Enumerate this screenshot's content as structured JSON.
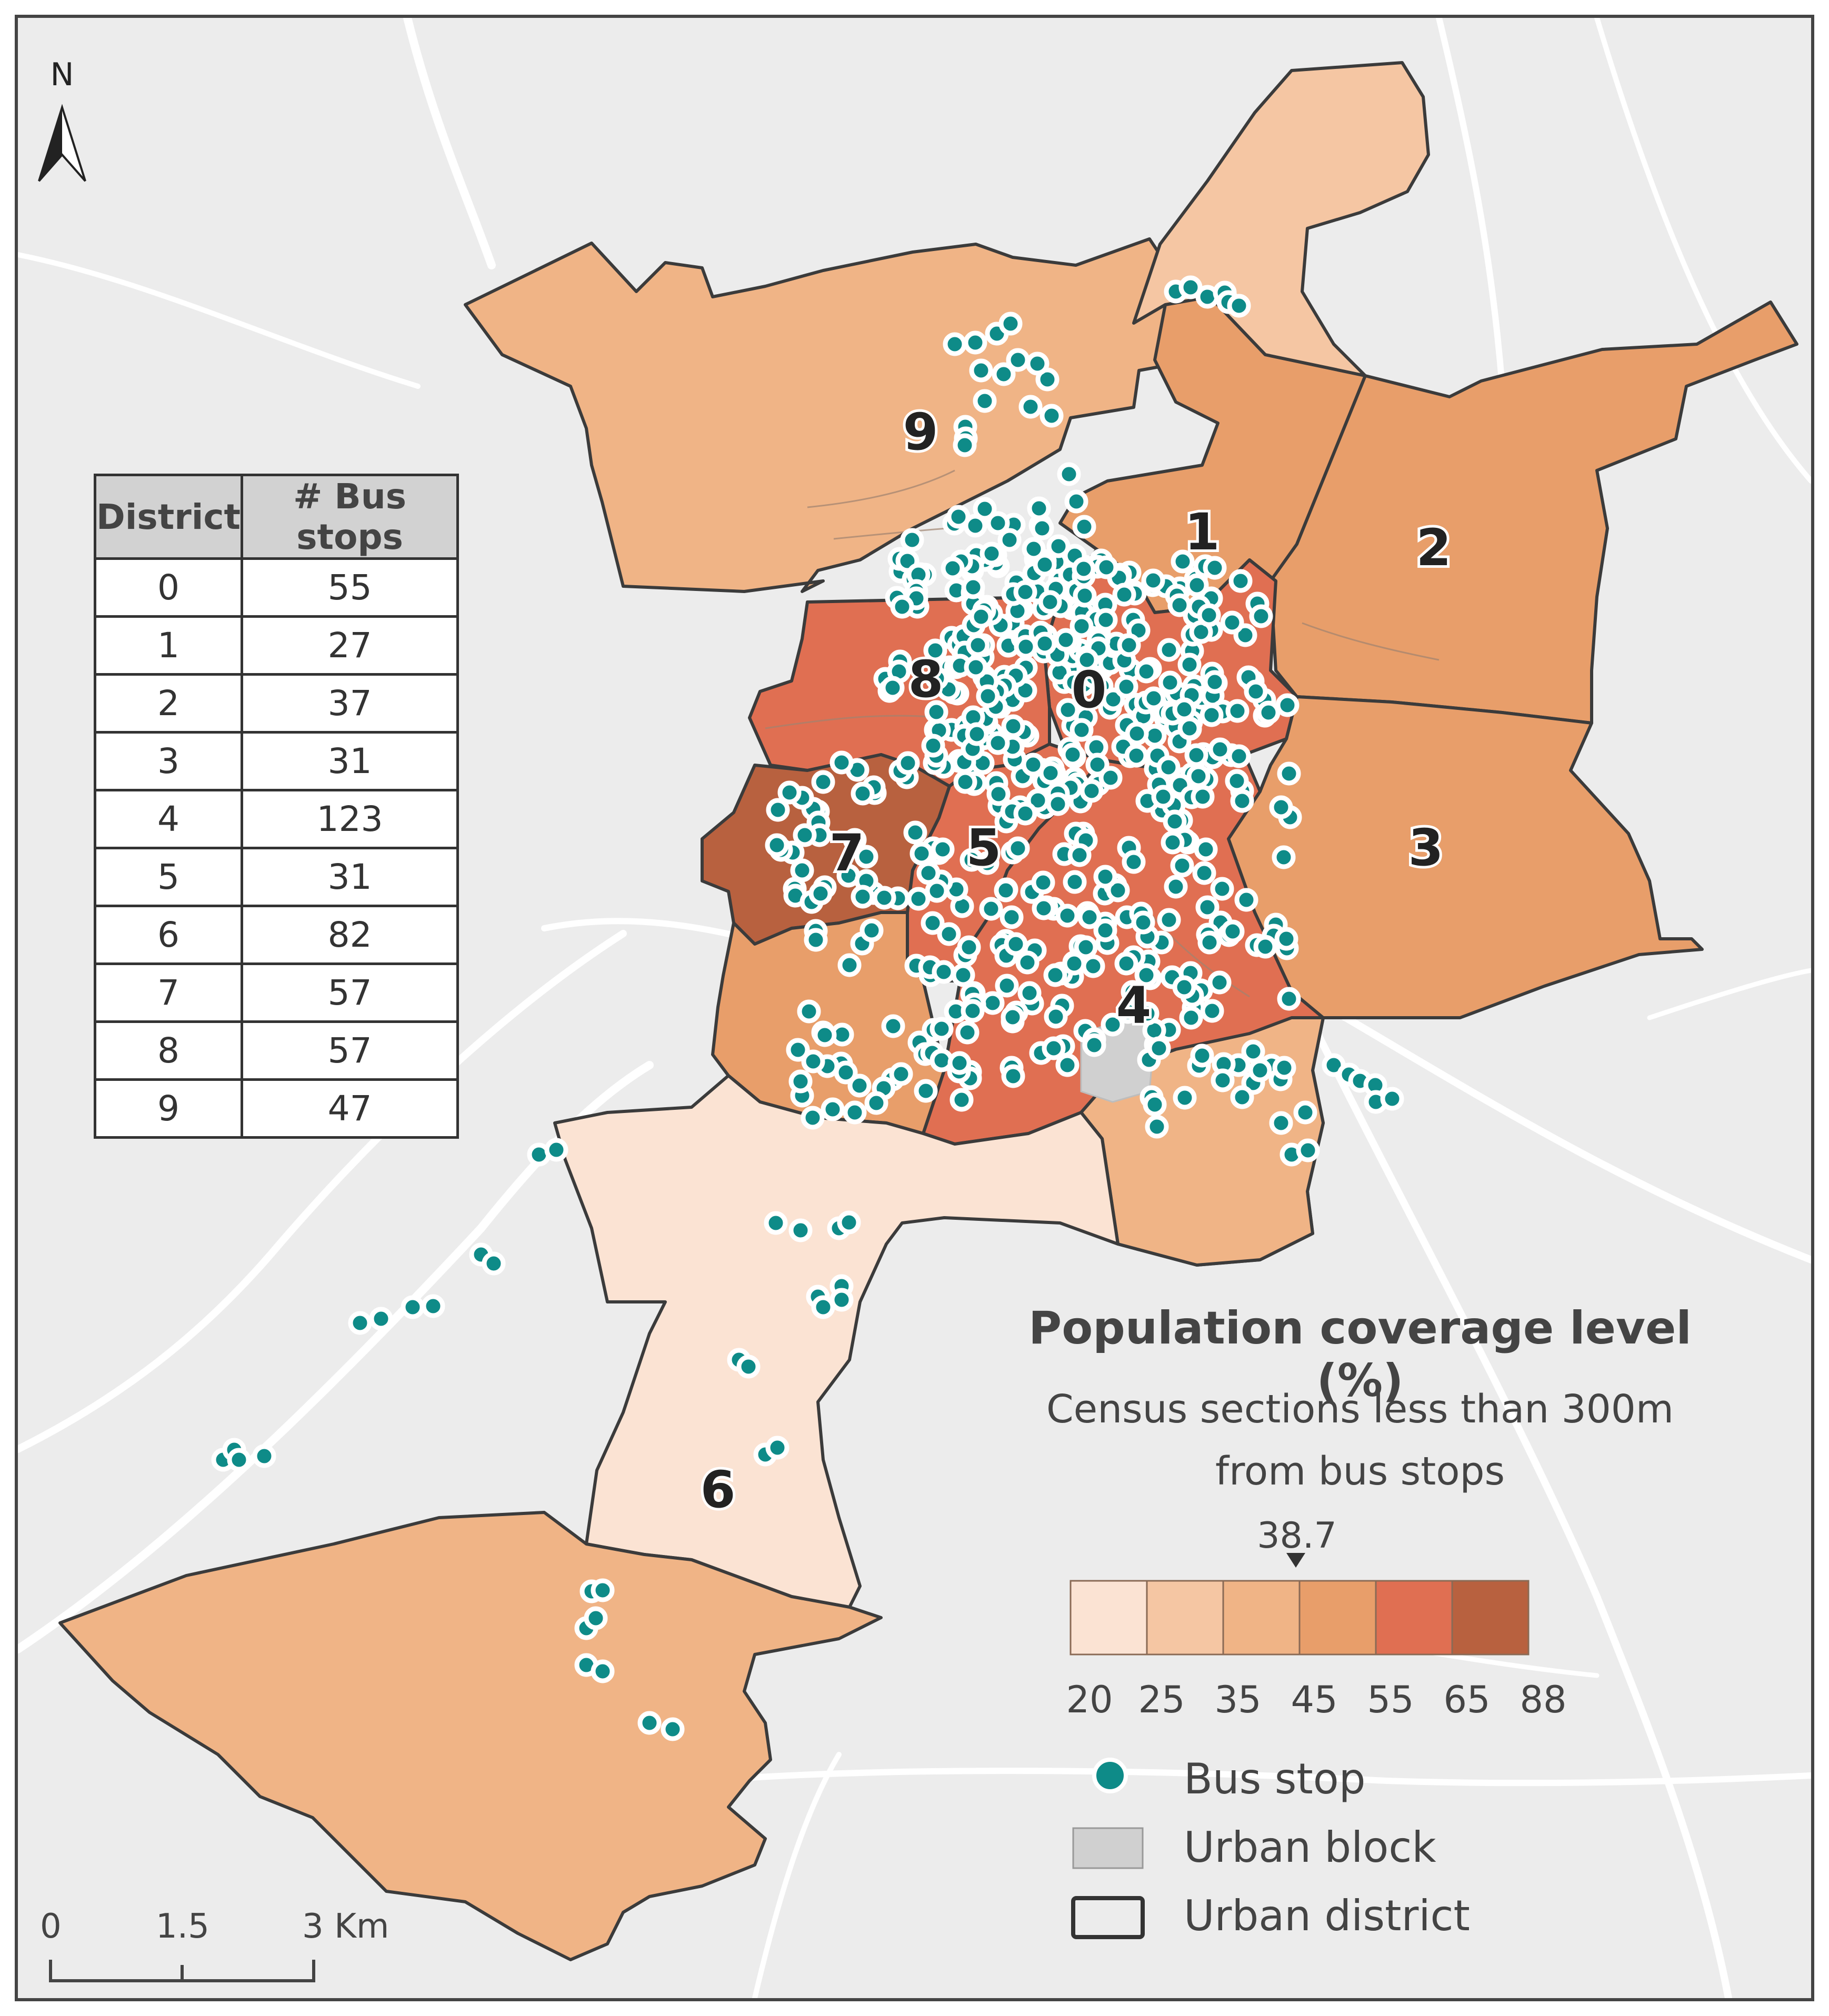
{
  "north_label": "N",
  "districts": [
    {
      "id": "0",
      "label": "0",
      "level": 4
    },
    {
      "id": "1",
      "label": "1",
      "level": 3
    },
    {
      "id": "2",
      "label": "2",
      "level": 3
    },
    {
      "id": "3",
      "label": "3",
      "level": 3
    },
    {
      "id": "4",
      "label": "4",
      "level": 4
    },
    {
      "id": "5",
      "label": "5",
      "level": 4
    },
    {
      "id": "6",
      "label": "6",
      "level": 1
    },
    {
      "id": "7",
      "label": "7",
      "level": 5
    },
    {
      "id": "8",
      "label": "8",
      "level": 4
    },
    {
      "id": "9",
      "label": "9",
      "level": 3
    }
  ],
  "table": {
    "headers": [
      "District",
      "# Bus stops"
    ],
    "rows": [
      [
        "0",
        "55"
      ],
      [
        "1",
        "27"
      ],
      [
        "2",
        "37"
      ],
      [
        "3",
        "31"
      ],
      [
        "4",
        "123"
      ],
      [
        "5",
        "31"
      ],
      [
        "6",
        "82"
      ],
      [
        "7",
        "57"
      ],
      [
        "8",
        "57"
      ],
      [
        "9",
        "47"
      ]
    ]
  },
  "legend": {
    "title": "Population coverage level (%)",
    "subtitle_line1": "Census sections less than 300m",
    "subtitle_line2": "from bus stops",
    "mean_value": "38.7",
    "breaks": [
      "20",
      "25",
      "35",
      "45",
      "55",
      "65",
      "88"
    ],
    "colors": [
      "#fbe3d3",
      "#f5c6a3",
      "#f0b486",
      "#e89e6a",
      "#e06f52",
      "#b8613f"
    ],
    "bus_stop_label": "Bus stop",
    "urban_block_label": "Urban block",
    "urban_district_label": "Urban district",
    "bus_stop_color": "#0e8b88",
    "urban_block_color": "#d0d0d0"
  },
  "scale_bar": {
    "labels": [
      "0",
      "1.5",
      "3 Km"
    ]
  }
}
